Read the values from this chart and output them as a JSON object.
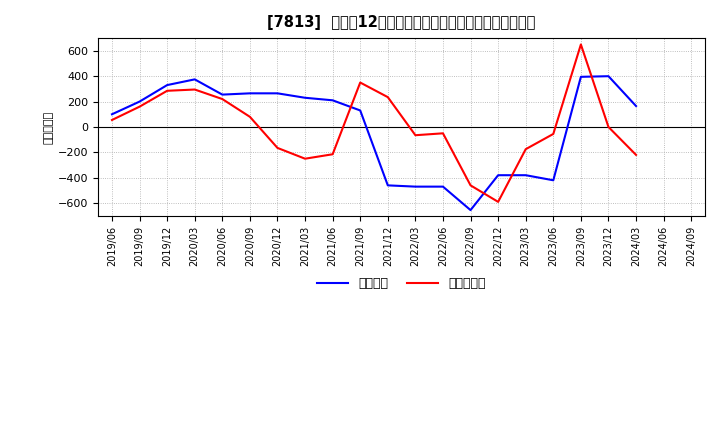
{
  "title": "[7813]  利益の12か月移動合計の対前年同期増減額の推移",
  "ylabel": "（百万円）",
  "legend_labels": [
    "経常利益",
    "当期純利益"
  ],
  "line_colors": [
    "#0000ff",
    "#ff0000"
  ],
  "background_color": "#ffffff",
  "plot_bg_color": "#ffffff",
  "grid_color": "#aaaaaa",
  "ylim": [
    -700,
    700
  ],
  "yticks": [
    -600,
    -400,
    -200,
    0,
    200,
    400,
    600
  ],
  "dates": [
    "2019/06",
    "2019/09",
    "2019/12",
    "2020/03",
    "2020/06",
    "2020/09",
    "2020/12",
    "2021/03",
    "2021/06",
    "2021/09",
    "2021/12",
    "2022/03",
    "2022/06",
    "2022/09",
    "2022/12",
    "2023/03",
    "2023/06",
    "2023/09",
    "2023/12",
    "2024/03",
    "2024/06",
    "2024/09"
  ],
  "keijo_rieki": [
    100,
    200,
    330,
    375,
    255,
    265,
    265,
    230,
    210,
    130,
    -460,
    -470,
    -470,
    -655,
    -380,
    -380,
    -420,
    395,
    400,
    165,
    null,
    null
  ],
  "touki_jun_rieki": [
    55,
    160,
    285,
    295,
    220,
    80,
    -165,
    -250,
    -215,
    350,
    235,
    -65,
    -50,
    -460,
    -590,
    -175,
    -55,
    650,
    0,
    -220,
    null,
    null
  ]
}
